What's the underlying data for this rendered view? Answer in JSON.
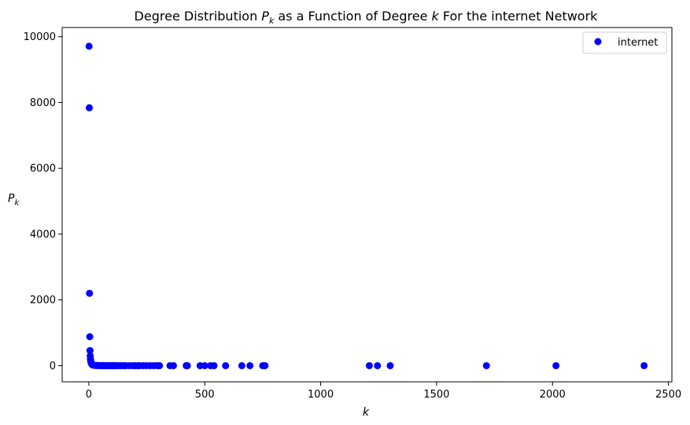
{
  "chart_data": {
    "type": "scatter",
    "title": {
      "prefix": "Degree Distribution ",
      "pk_main": "P",
      "pk_sub": "k",
      "middle": " as a Function of Degree ",
      "k": "k",
      "suffix": " For the internet Network"
    },
    "xlabel": "k",
    "ylabel": {
      "main": "P",
      "sub": "k"
    },
    "xlim": [
      -115,
      2515
    ],
    "ylim": [
      -490,
      10280
    ],
    "xticks": [
      0,
      500,
      1000,
      1500,
      2000,
      2500
    ],
    "yticks": [
      0,
      2000,
      4000,
      6000,
      8000,
      10000
    ],
    "legend": {
      "position": "top-right"
    },
    "series": [
      {
        "name": "internet",
        "color": "#0000ff",
        "x": [
          1,
          2,
          3,
          4,
          5,
          6,
          7,
          8,
          9,
          10,
          11,
          12,
          13,
          14,
          15,
          16,
          18,
          20,
          22,
          25,
          28,
          30,
          33,
          36,
          40,
          45,
          50,
          55,
          60,
          65,
          70,
          75,
          80,
          85,
          90,
          95,
          100,
          105,
          110,
          115,
          120,
          130,
          140,
          150,
          160,
          175,
          190,
          200,
          210,
          220,
          235,
          250,
          265,
          280,
          295,
          305,
          350,
          365,
          420,
          425,
          480,
          500,
          525,
          540,
          590,
          660,
          695,
          750,
          760,
          1210,
          1245,
          1300,
          1715,
          2015,
          2395
        ],
        "y": [
          9710,
          7840,
          2200,
          880,
          460,
          300,
          200,
          150,
          110,
          90,
          70,
          55,
          45,
          35,
          30,
          25,
          20,
          15,
          12,
          10,
          8,
          7,
          6,
          5,
          4,
          3,
          3,
          2,
          2,
          2,
          1,
          1,
          1,
          1,
          1,
          1,
          1,
          1,
          1,
          1,
          1,
          1,
          1,
          1,
          1,
          1,
          1,
          1,
          1,
          1,
          1,
          1,
          1,
          1,
          1,
          1,
          1,
          1,
          1,
          1,
          1,
          1,
          1,
          1,
          1,
          1,
          1,
          1,
          1,
          1,
          1,
          1,
          1,
          1,
          1
        ]
      }
    ]
  }
}
